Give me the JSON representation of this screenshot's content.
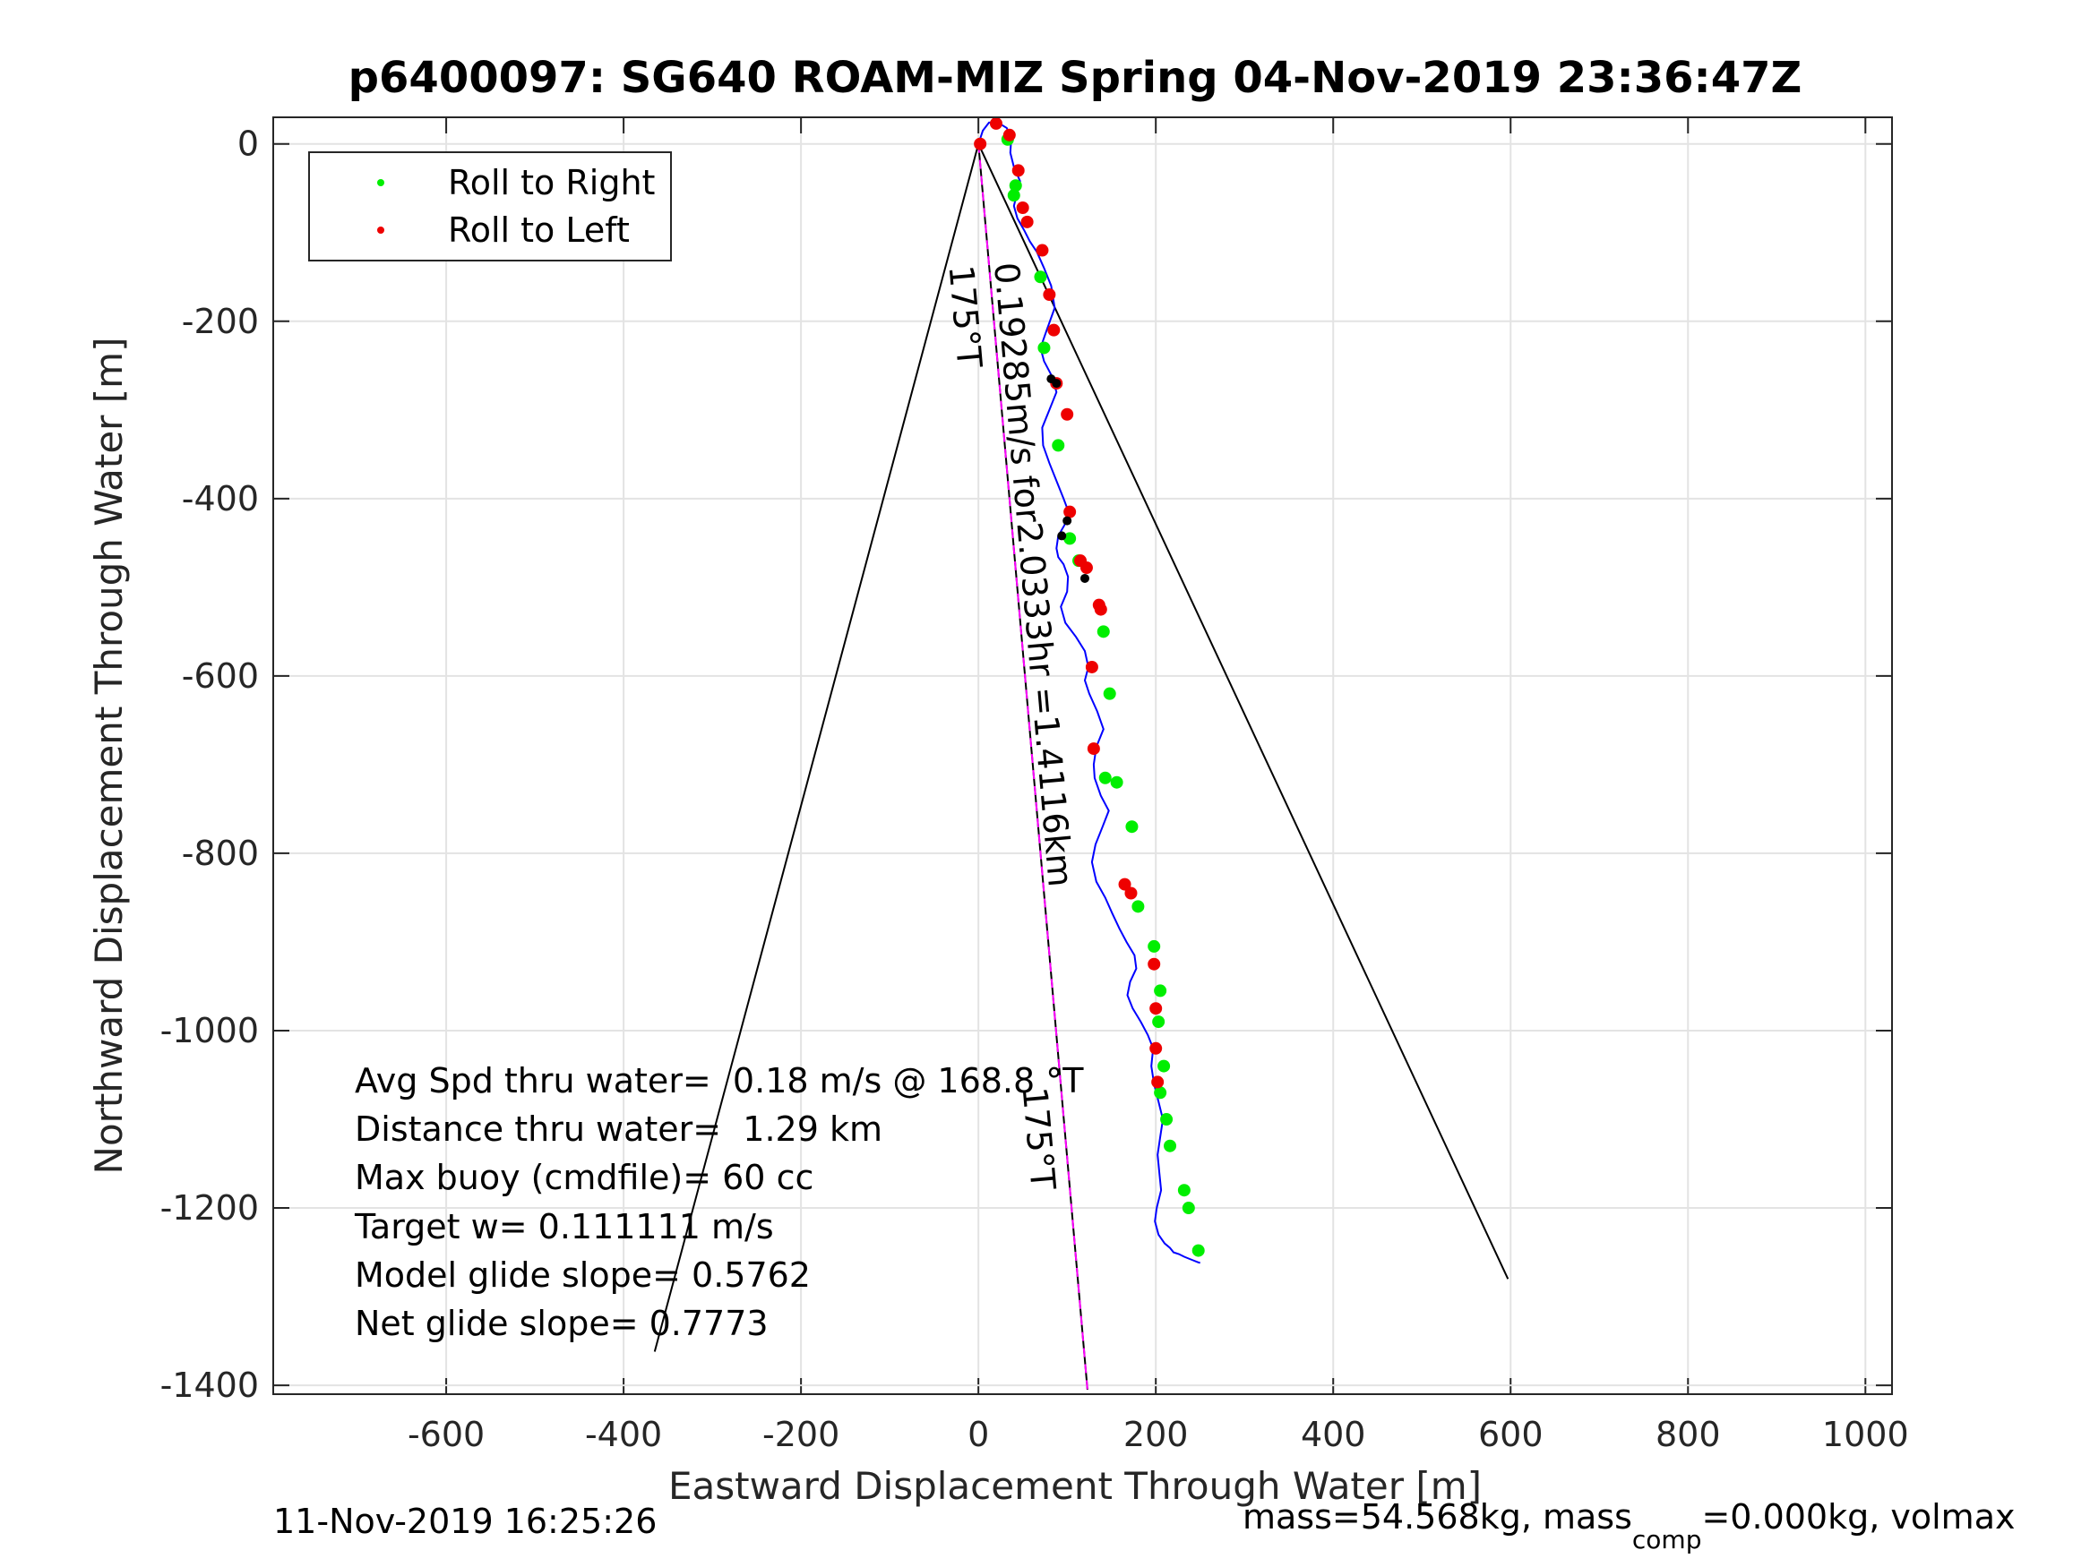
{
  "chart_data": {
    "type": "scatter",
    "title": "p6400097: SG640 ROAM-MIZ Spring 04-Nov-2019 23:36:47Z",
    "xlabel": "Eastward Displacement Through Water [m]",
    "ylabel": "Northward Displacement Through Water [m]",
    "xlim": [
      -795,
      1030
    ],
    "ylim": [
      -1410,
      30
    ],
    "xticks": [
      -600,
      -400,
      -200,
      0,
      200,
      400,
      600,
      800,
      1000
    ],
    "yticks": [
      0,
      -200,
      -400,
      -600,
      -800,
      -1000,
      -1200,
      -1400
    ],
    "grid": true,
    "legend_position": "top-left",
    "legend": [
      {
        "label": "Roll to Right",
        "color": "#00ee00"
      },
      {
        "label": "Roll to Left",
        "color": "#ee0000"
      }
    ],
    "track": {
      "color": "#0000ff",
      "x": [
        0,
        5,
        12,
        22,
        32,
        37,
        36,
        40,
        47,
        43,
        40,
        44,
        52,
        58,
        66,
        74,
        82,
        86,
        77,
        70,
        74,
        83,
        88,
        80,
        72,
        73,
        80,
        88,
        96,
        102,
        97,
        90,
        88,
        90,
        96,
        101,
        100,
        93,
        98,
        110,
        120,
        124,
        120,
        125,
        134,
        141,
        133,
        130,
        131,
        138,
        147,
        140,
        132,
        128,
        133,
        143,
        151,
        159,
        167,
        176,
        178,
        171,
        168,
        174,
        183,
        191,
        197,
        195,
        198,
        203,
        208,
        205,
        202,
        204,
        206,
        201,
        199,
        203,
        210,
        216,
        220,
        226,
        232,
        237,
        242,
        247,
        250
      ],
      "y": [
        0,
        15,
        24,
        24,
        18,
        6,
        -10,
        -26,
        -42,
        -58,
        -70,
        -84,
        -98,
        -110,
        -122,
        -140,
        -160,
        -185,
        -210,
        -230,
        -245,
        -262,
        -280,
        -300,
        -320,
        -340,
        -360,
        -380,
        -400,
        -416,
        -430,
        -442,
        -456,
        -466,
        -474,
        -488,
        -505,
        -522,
        -540,
        -556,
        -572,
        -590,
        -605,
        -620,
        -640,
        -660,
        -680,
        -700,
        -715,
        -735,
        -752,
        -770,
        -790,
        -810,
        -832,
        -850,
        -868,
        -885,
        -900,
        -915,
        -930,
        -945,
        -960,
        -975,
        -990,
        -1005,
        -1020,
        -1040,
        -1060,
        -1080,
        -1100,
        -1120,
        -1140,
        -1160,
        -1180,
        -1200,
        -1215,
        -1230,
        -1240,
        -1245,
        -1250,
        -1252,
        -1255,
        -1257,
        -1259,
        -1261,
        -1262
      ]
    },
    "roll_right_points": {
      "x": [
        33,
        42,
        40,
        70,
        74,
        90,
        103,
        113,
        141,
        148,
        143,
        156,
        173,
        180,
        198,
        205,
        203,
        209,
        205,
        212,
        216,
        232,
        237,
        248
      ],
      "y": [
        5,
        -47,
        -58,
        -150,
        -230,
        -340,
        -445,
        -470,
        -550,
        -620,
        -715,
        -720,
        -770,
        -860,
        -905,
        -955,
        -990,
        -1040,
        -1070,
        -1100,
        -1130,
        -1180,
        -1200,
        -1248
      ]
    },
    "roll_left_points": {
      "x": [
        2,
        20,
        35,
        45,
        50,
        55,
        72,
        80,
        85,
        88,
        100,
        103,
        115,
        122,
        136,
        138,
        128,
        130,
        165,
        172,
        198,
        200,
        200,
        202
      ],
      "y": [
        0,
        23,
        10,
        -30,
        -72,
        -88,
        -120,
        -170,
        -210,
        -270,
        -305,
        -415,
        -470,
        -478,
        -520,
        -525,
        -590,
        -682,
        -835,
        -845,
        -925,
        -975,
        -1020,
        -1058
      ]
    },
    "black_points": {
      "x": [
        82,
        88,
        100,
        94,
        120
      ],
      "y": [
        -265,
        -270,
        -425,
        -442,
        -490
      ]
    },
    "cone_lines": [
      {
        "x": [
          0,
          -365
        ],
        "y": [
          0,
          -1362
        ]
      },
      {
        "x": [
          0,
          597
        ],
        "y": [
          0,
          -1280
        ]
      }
    ],
    "heading_lines": [
      {
        "color": "#000000",
        "x": [
          0,
          123
        ],
        "y": [
          0,
          -1405
        ]
      },
      {
        "color": "#ff00ff",
        "dashed": true,
        "x": [
          0,
          123
        ],
        "y": [
          0,
          -1405
        ]
      }
    ],
    "annotations": [
      {
        "text": "175°T",
        "x": -33,
        "y": -138,
        "rotation": 85
      },
      {
        "text": "0.19285m/s for2.0333hr =1.4116km",
        "x": 18,
        "y": -135,
        "rotation": 85
      },
      {
        "text": "175°T",
        "x": 50,
        "y": -1065,
        "rotation": 85
      }
    ],
    "stats": [
      "Avg Spd thru water=  0.18 m/s @ 168.8 °T",
      "Distance thru water=  1.29 km",
      "Max buoy (cmdfile)= 60 cc",
      "Target w= 0.111111 m/s",
      "Model glide slope= 0.5762",
      "Net glide slope= 0.7773"
    ],
    "footer_left": "11-Nov-2019 16:25:26",
    "footer_right": {
      "part1": "mass=54.568kg, mass",
      "sub": "comp",
      "part2": "=0.000kg, volmax"
    }
  }
}
